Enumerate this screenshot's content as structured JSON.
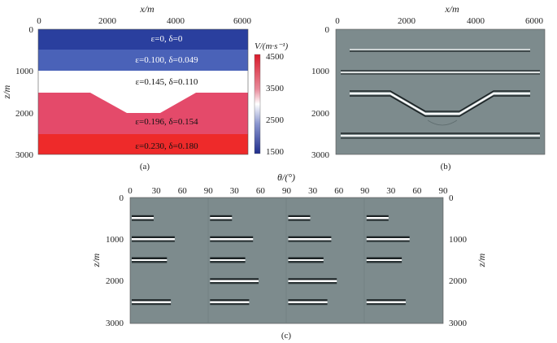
{
  "chart_data": [
    {
      "type": "other",
      "panel": "a",
      "caption": "(a)",
      "xlabel": "x/m",
      "ylabel": "z/m",
      "xticks": [
        "0",
        "2000",
        "4000",
        "6000"
      ],
      "yticks": [
        "0",
        "1000",
        "2000",
        "3000"
      ],
      "xlim": [
        0,
        6000
      ],
      "ylim": [
        0,
        3000
      ],
      "layers": [
        {
          "label_eps": "ε=0",
          "label_del": "δ=0",
          "text": "ε=0, δ=0",
          "top": 0,
          "bottom": 500,
          "color": "#2a3f9e",
          "text_color": "#ffffff"
        },
        {
          "label_eps": "ε=0.100",
          "label_del": "δ=0.049",
          "text": "ε=0.100, δ=0.049",
          "top": 500,
          "bottom": 1000,
          "color": "#4a62b8",
          "text_color": "#ffffff"
        },
        {
          "text": "ε=0.145, δ=0.110",
          "top": 1000,
          "bottom": "reflector",
          "color": "#ffffff",
          "text_color": "#111111"
        },
        {
          "text": "ε=0.196, δ=0.154",
          "top": "reflector",
          "bottom": 2500,
          "color": "#e44a6a",
          "text_color": "#111111"
        },
        {
          "text": "ε=0.230, δ=0.180",
          "top": 2500,
          "bottom": 3000,
          "color": "#ee2a2a",
          "text_color": "#111111"
        }
      ],
      "reflector_xz": [
        [
          0,
          1500
        ],
        [
          1500,
          1500
        ],
        [
          2600,
          2000
        ],
        [
          3600,
          2000
        ],
        [
          4700,
          1500
        ],
        [
          6000,
          1500
        ]
      ],
      "colorbar": {
        "label": "V/(m·s⁻¹)",
        "ticks": [
          "4500",
          "3500",
          "2500",
          "1500"
        ],
        "range": [
          1500,
          4500
        ],
        "colors": [
          "#1f2d8c",
          "#ffffff",
          "#d91b2b"
        ]
      }
    },
    {
      "type": "other",
      "panel": "b",
      "caption": "(b)",
      "xlabel": "x/m",
      "xticks": [
        "0",
        "2000",
        "4000",
        "6000"
      ],
      "yticks": [
        "0",
        "1000",
        "2000",
        "3000"
      ],
      "reflectors_z": [
        500,
        1000,
        2500
      ],
      "dipping_reflector_xz": [
        [
          0,
          1500
        ],
        [
          1500,
          1500
        ],
        [
          2600,
          2000
        ],
        [
          3600,
          2000
        ],
        [
          4700,
          1500
        ],
        [
          6000,
          1500
        ]
      ]
    },
    {
      "type": "other",
      "panel": "c",
      "caption": "(c)",
      "xlabel": "θ/(°)",
      "ylabel": "z/m",
      "gather_ticks": [
        "30",
        "60",
        "90"
      ],
      "left_zero": "0",
      "yticks": [
        "0",
        "1000",
        "2000",
        "3000"
      ],
      "gathers": 4,
      "events_z": [
        500,
        1000,
        1500,
        2000,
        2500
      ]
    }
  ]
}
